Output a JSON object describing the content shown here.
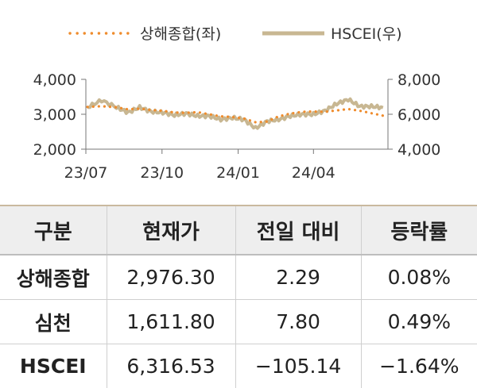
{
  "chart_data": {
    "type": "line",
    "x_ticks": [
      "23/07",
      "23/10",
      "24/01",
      "24/04"
    ],
    "y_left": {
      "ticks": [
        "2,000",
        "3,000",
        "4,000"
      ],
      "ylim": [
        2000,
        4000
      ]
    },
    "y_right": {
      "ticks": [
        "4,000",
        "6,000",
        "8,000"
      ],
      "ylim": [
        4000,
        8000
      ]
    },
    "legend_position": "top",
    "series": [
      {
        "name": "상해종합(좌)",
        "axis": "left",
        "style": "dotted",
        "color": "#ef8c2d",
        "x": [
          "2023-07-03",
          "2023-07-20",
          "2023-08-07",
          "2023-08-21",
          "2023-09-04",
          "2023-09-18",
          "2023-10-02",
          "2023-10-16",
          "2023-10-30",
          "2023-11-13",
          "2023-11-27",
          "2023-12-11",
          "2023-12-25",
          "2024-01-08",
          "2024-01-22",
          "2024-02-05",
          "2024-02-19",
          "2024-03-04",
          "2024-03-18",
          "2024-04-01",
          "2024-04-15",
          "2024-04-29",
          "2024-05-13",
          "2024-05-27",
          "2024-06-10",
          "2024-06-24"
        ],
        "values": [
          3210,
          3230,
          3200,
          3140,
          3160,
          3120,
          3100,
          3050,
          3040,
          3060,
          3000,
          2940,
          2920,
          2880,
          2770,
          2790,
          2940,
          3020,
          3070,
          3080,
          3070,
          3110,
          3150,
          3100,
          3030,
          2960
        ]
      },
      {
        "name": "HSCEI(우)",
        "axis": "right",
        "style": "solid",
        "color": "#c8b792",
        "x": [
          "2023-07-03",
          "2023-07-20",
          "2023-08-07",
          "2023-08-21",
          "2023-09-04",
          "2023-09-18",
          "2023-10-02",
          "2023-10-16",
          "2023-10-30",
          "2023-11-13",
          "2023-11-27",
          "2023-12-11",
          "2023-12-25",
          "2024-01-08",
          "2024-01-22",
          "2024-02-05",
          "2024-02-19",
          "2024-03-04",
          "2024-03-18",
          "2024-04-01",
          "2024-04-15",
          "2024-04-29",
          "2024-05-13",
          "2024-05-27",
          "2024-06-10",
          "2024-06-24"
        ],
        "values": [
          6400,
          6800,
          6400,
          6100,
          6400,
          6150,
          6100,
          5950,
          6050,
          5900,
          5900,
          5700,
          5800,
          5700,
          5200,
          5600,
          5700,
          5900,
          6000,
          6000,
          6200,
          6600,
          6850,
          6450,
          6450,
          6380
        ]
      }
    ]
  },
  "table": {
    "headers": [
      "구분",
      "현재가",
      "전일 대비",
      "등락률"
    ],
    "rows": [
      [
        "상해종합",
        "2,976.30",
        "2.29",
        "0.08%"
      ],
      [
        "심천",
        "1,611.80",
        "7.80",
        "0.49%"
      ],
      [
        "HSCEI",
        "6,316.53",
        "−105.14",
        "−1.64%"
      ]
    ]
  }
}
